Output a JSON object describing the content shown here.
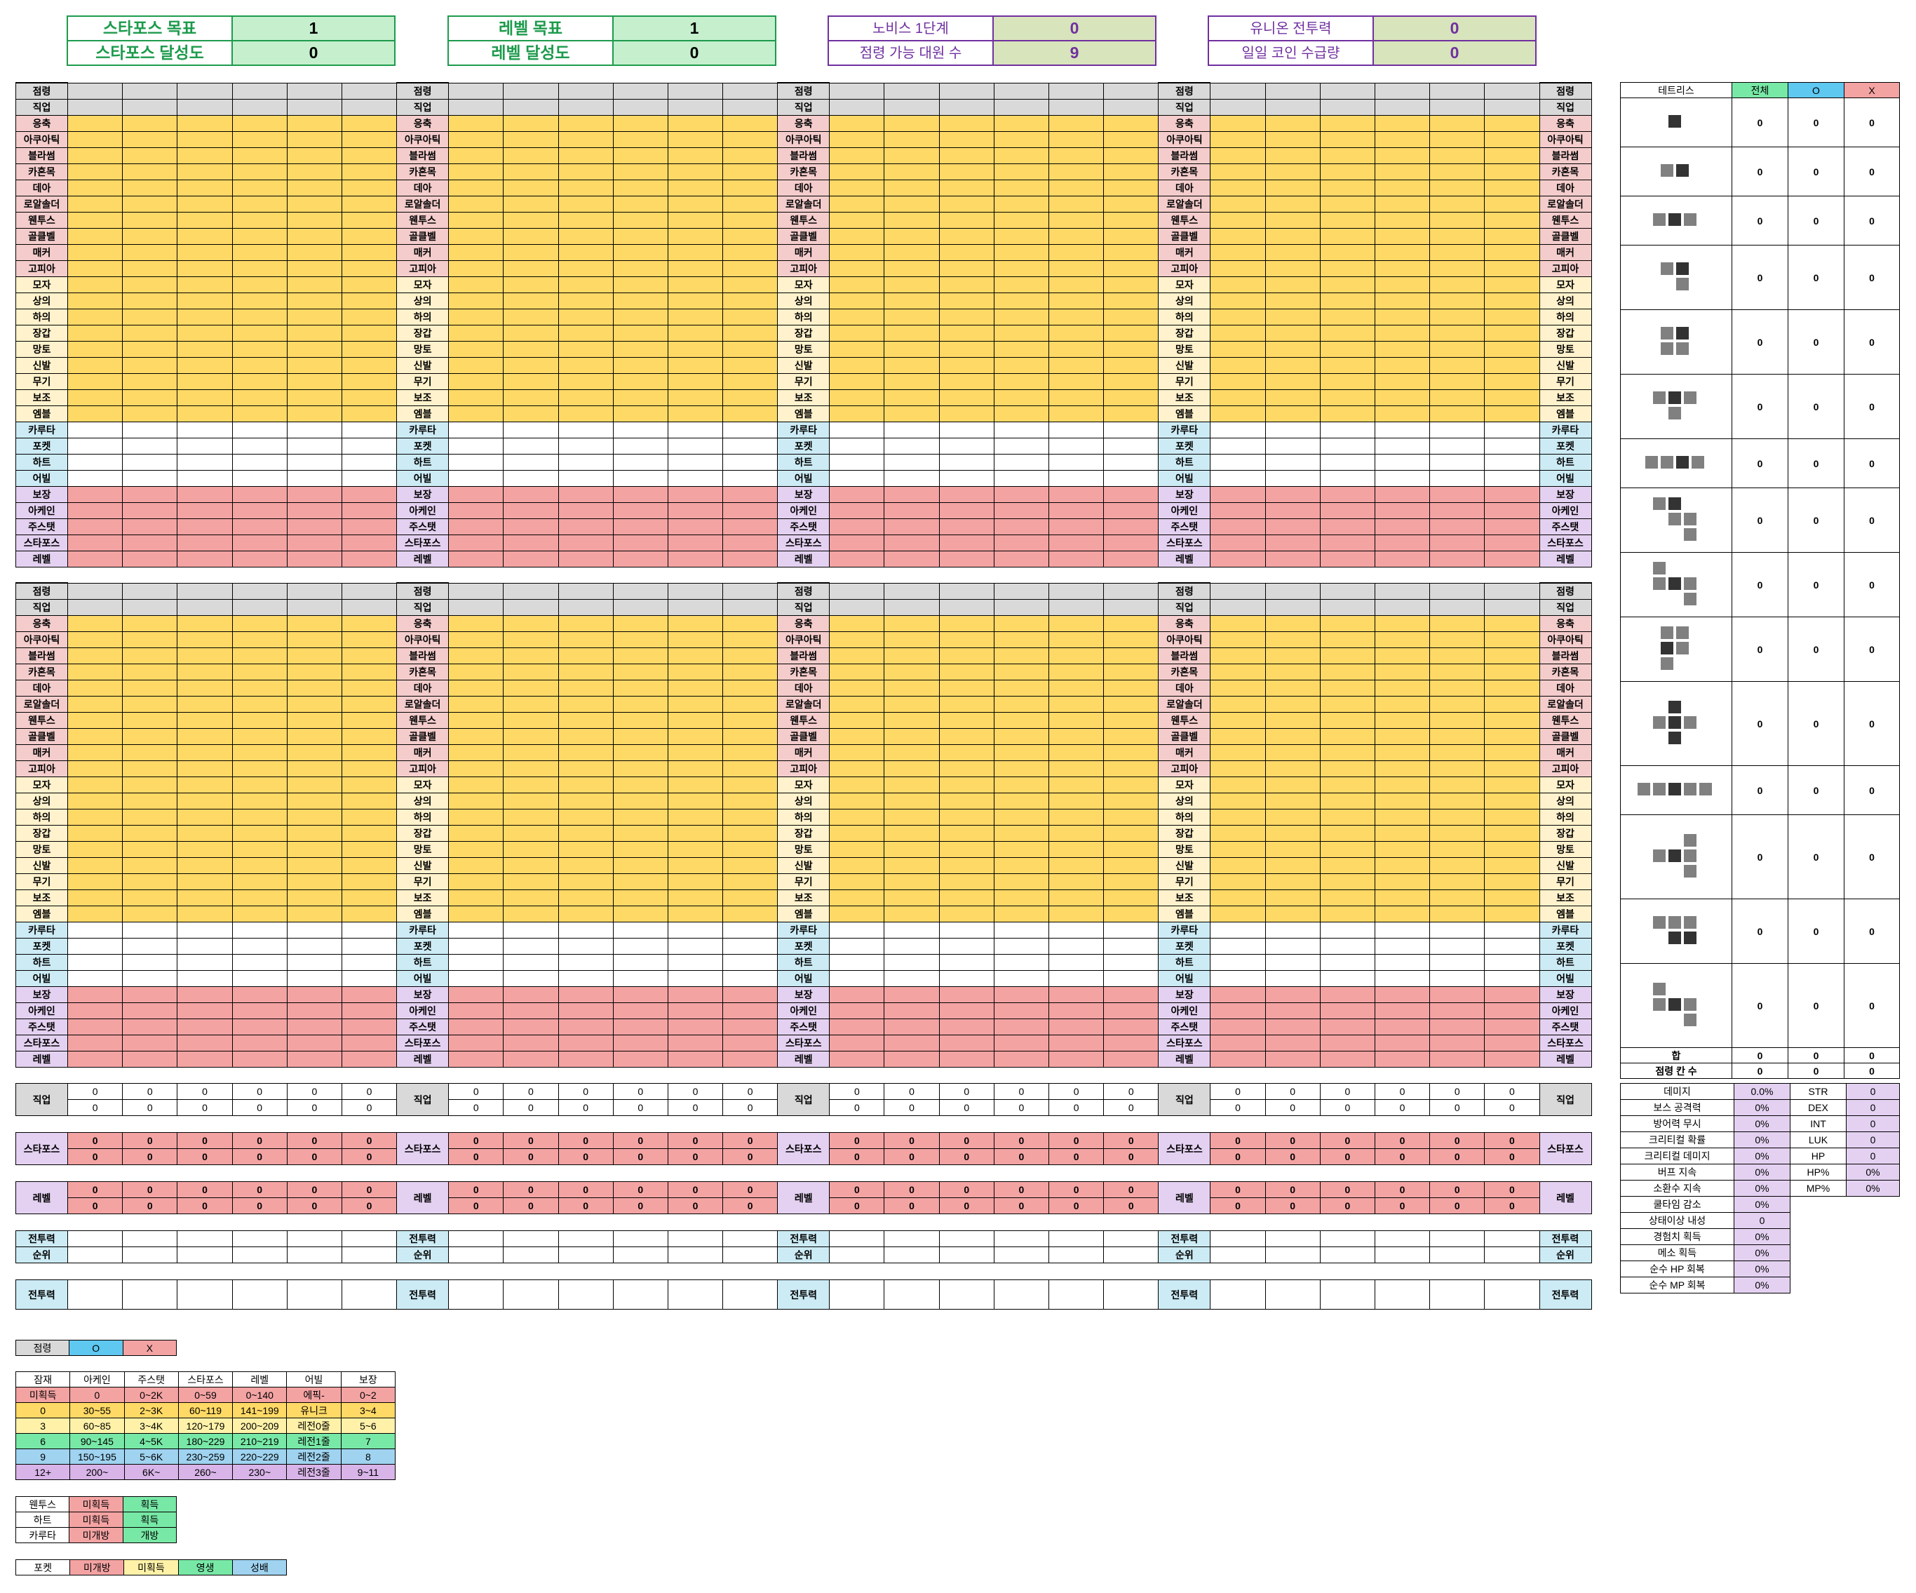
{
  "summary": {
    "starforce_goal_label": "스타포스 목표",
    "starforce_goal_value": "1",
    "starforce_achv_label": "스타포스 달성도",
    "starforce_achv_value": "0",
    "level_goal_label": "레벨 목표",
    "level_goal_value": "1",
    "level_achv_label": "레벨 달성도",
    "level_achv_value": "0",
    "novice_label": "노비스 1단계",
    "novice_value": "0",
    "occupy_label": "점령 가능 대원 수",
    "occupy_value": "9",
    "union_power_label": "유니온 전투력",
    "union_power_value": "0",
    "daily_coin_label": "일일 코인 수급량",
    "daily_coin_value": "0"
  },
  "grid_labels": [
    "점령",
    "직업",
    "응축",
    "아쿠아틱",
    "블라썸",
    "카혼목",
    "데아",
    "로알솔더",
    "웬투스",
    "골클벨",
    "매커",
    "고피아",
    "모자",
    "상의",
    "하의",
    "장갑",
    "망토",
    "신발",
    "무기",
    "보조",
    "엠블",
    "카루타",
    "포켓",
    "하트",
    "어빌",
    "보장",
    "아케인",
    "주스탯",
    "스타포스",
    "레벨"
  ],
  "bottom": {
    "job": "직업",
    "starforce": "스타포스",
    "level": "레벨",
    "power": "전투력",
    "rank": "순위",
    "zero": "0"
  },
  "tetris": {
    "headers": [
      "테트리스",
      "전체",
      "O",
      "X"
    ],
    "zero": "0",
    "sum_label": "합",
    "occupied_label": "점령 칸 수"
  },
  "stats": {
    "left": [
      {
        "label": "데미지",
        "value": "0.0%"
      },
      {
        "label": "보스 공격력",
        "value": "0%"
      },
      {
        "label": "방어력 무시",
        "value": "0%"
      },
      {
        "label": "크리티컬 확률",
        "value": "0%"
      },
      {
        "label": "크리티컬 데미지",
        "value": "0%"
      },
      {
        "label": "버프 지속",
        "value": "0%"
      },
      {
        "label": "소환수 지속",
        "value": "0%"
      },
      {
        "label": "쿨타임 감소",
        "value": "0%"
      },
      {
        "label": "상태이상 내성",
        "value": "0"
      },
      {
        "label": "경험치 획득",
        "value": "0%"
      },
      {
        "label": "메소 획득",
        "value": "0%"
      },
      {
        "label": "순수 HP 회복",
        "value": "0%"
      },
      {
        "label": "순수 MP 회복",
        "value": "0%"
      }
    ],
    "right": [
      {
        "label": "STR",
        "value": "0"
      },
      {
        "label": "DEX",
        "value": "0"
      },
      {
        "label": "INT",
        "value": "0"
      },
      {
        "label": "LUK",
        "value": "0"
      },
      {
        "label": "HP",
        "value": "0"
      },
      {
        "label": "HP%",
        "value": "0%"
      },
      {
        "label": "MP%",
        "value": "0%"
      }
    ]
  },
  "legend_occupy": {
    "label": "점령",
    "o": "O",
    "x": "X"
  },
  "legend_table": {
    "headers": [
      "잠재",
      "아케인",
      "주스탯",
      "스타포스",
      "레벨",
      "어빌",
      "보장"
    ],
    "rows": [
      [
        "미획득",
        "0",
        "0~2K",
        "0~59",
        "0~140",
        "에픽-",
        "0~2"
      ],
      [
        "0",
        "30~55",
        "2~3K",
        "60~119",
        "141~199",
        "유니크",
        "3~4"
      ],
      [
        "3",
        "60~85",
        "3~4K",
        "120~179",
        "200~209",
        "레전0줄",
        "5~6"
      ],
      [
        "6",
        "90~145",
        "4~5K",
        "180~229",
        "210~219",
        "레전1줄",
        "7"
      ],
      [
        "9",
        "150~195",
        "5~6K",
        "230~259",
        "220~229",
        "레전2줄",
        "8"
      ],
      [
        "12+",
        "200~",
        "6K~",
        "260~",
        "230~",
        "레전3줄",
        "9~11"
      ]
    ]
  },
  "legend_open": {
    "rows": [
      [
        "웬투스",
        "미획득",
        "획득"
      ],
      [
        "하트",
        "미획득",
        "획득"
      ],
      [
        "카루타",
        "미개방",
        "개방"
      ]
    ]
  },
  "legend_pocket": [
    "포켓",
    "미개방",
    "미획득",
    "영생",
    "성배"
  ],
  "colors": {
    "gold": "#ffd966",
    "red": "#f4a3a3",
    "green": "#78e8a6",
    "blue": "#5ec8f0",
    "lavender": "#e4d1f1"
  }
}
